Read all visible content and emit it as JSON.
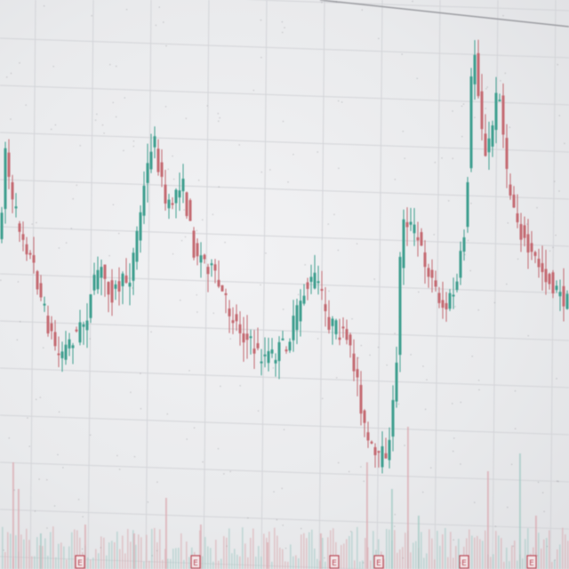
{
  "colors": {
    "background": "#ececee",
    "grid": "#d3d4d8",
    "up": "#3f9f8f",
    "down": "#c46a72",
    "volume": "#d9a7ad",
    "marker": "#b94a57"
  },
  "chart_data": {
    "type": "candlestick",
    "title": "",
    "xlabel": "",
    "ylabel": "",
    "grid": true,
    "price_path": [
      [
        0,
        140
      ],
      [
        3,
        350
      ],
      [
        8,
        150
      ],
      [
        18,
        230
      ],
      [
        28,
        260
      ],
      [
        42,
        300
      ],
      [
        56,
        360
      ],
      [
        70,
        400
      ],
      [
        86,
        380
      ],
      [
        100,
        360
      ],
      [
        115,
        300
      ],
      [
        130,
        330
      ],
      [
        150,
        310
      ],
      [
        160,
        250
      ],
      [
        176,
        150
      ],
      [
        192,
        240
      ],
      [
        208,
        200
      ],
      [
        222,
        280
      ],
      [
        240,
        300
      ],
      [
        262,
        350
      ],
      [
        280,
        380
      ],
      [
        296,
        400
      ],
      [
        312,
        400
      ],
      [
        330,
        380
      ],
      [
        344,
        330
      ],
      [
        360,
        310
      ],
      [
        372,
        360
      ],
      [
        392,
        380
      ],
      [
        405,
        420
      ],
      [
        415,
        490
      ],
      [
        428,
        520
      ],
      [
        443,
        500
      ],
      [
        450,
        400
      ],
      [
        456,
        240
      ],
      [
        470,
        260
      ],
      [
        488,
        310
      ],
      [
        504,
        350
      ],
      [
        518,
        320
      ],
      [
        528,
        250
      ],
      [
        536,
        40
      ],
      [
        550,
        180
      ],
      [
        558,
        140
      ],
      [
        565,
        90
      ],
      [
        574,
        200
      ],
      [
        584,
        240
      ],
      [
        596,
        280
      ],
      [
        612,
        300
      ],
      [
        624,
        320
      ],
      [
        640,
        340
      ]
    ],
    "volume_spikes": [
      [
        14,
        120
      ],
      [
        20,
        90
      ],
      [
        45,
        40
      ],
      [
        95,
        50
      ],
      [
        150,
        40
      ],
      [
        186,
        80
      ],
      [
        225,
        50
      ],
      [
        300,
        30
      ],
      [
        360,
        40
      ],
      [
        412,
        120
      ],
      [
        440,
        90
      ],
      [
        458,
        160
      ],
      [
        470,
        60
      ],
      [
        548,
        110
      ],
      [
        584,
        130
      ],
      [
        602,
        60
      ]
    ],
    "event_markers": [
      "E",
      "E",
      "E",
      "E",
      "E",
      "E"
    ]
  }
}
